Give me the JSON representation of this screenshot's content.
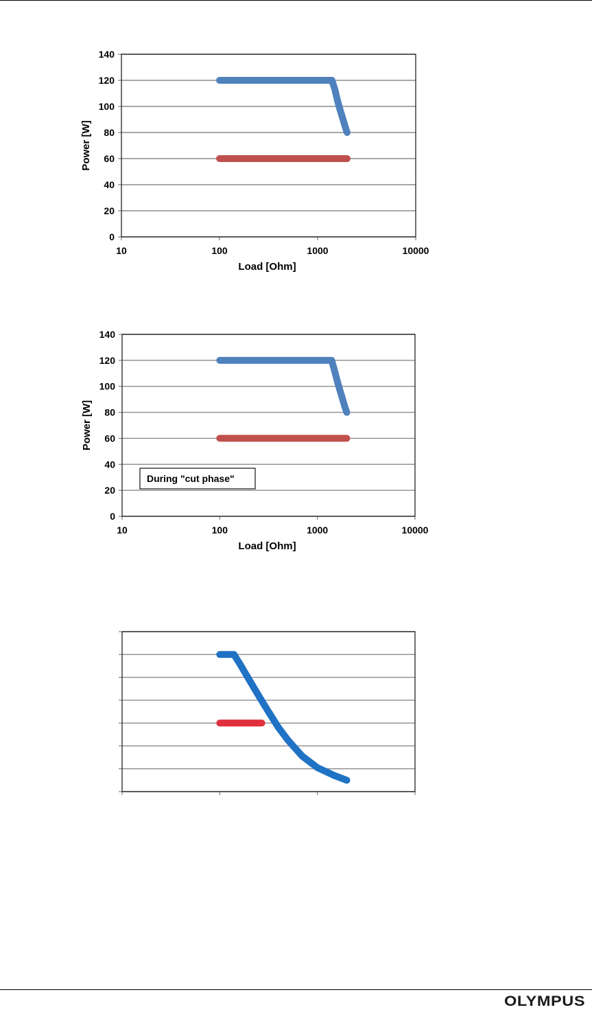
{
  "footer": {
    "brand": "OLYMPUS"
  },
  "chart_data": [
    {
      "type": "line",
      "xscale": "log",
      "xlim": [
        10,
        10000
      ],
      "ylim": [
        0,
        140
      ],
      "yticks": [
        0,
        20,
        40,
        60,
        80,
        100,
        120,
        140
      ],
      "xticks": [
        10,
        100,
        1000,
        10000
      ],
      "show_tick_labels": true,
      "xlabel": "Load [Ohm]",
      "ylabel": "Power [W]",
      "grid": true,
      "annotation": "",
      "series": [
        {
          "color": "#4f81bd",
          "x": [
            100,
            1000,
            1400,
            1500,
            1600,
            1700,
            1800,
            1900,
            2000
          ],
          "y": [
            120,
            120,
            120,
            113,
            104,
            97,
            91,
            85,
            80
          ]
        },
        {
          "color": "#c0504d",
          "x": [
            100,
            2000
          ],
          "y": [
            60,
            60
          ]
        }
      ]
    },
    {
      "type": "line",
      "xscale": "log",
      "xlim": [
        10,
        10000
      ],
      "ylim": [
        0,
        140
      ],
      "yticks": [
        0,
        20,
        40,
        60,
        80,
        100,
        120,
        140
      ],
      "xticks": [
        10,
        100,
        1000,
        10000
      ],
      "show_tick_labels": true,
      "xlabel": "Load [Ohm]",
      "ylabel": "Power [W]",
      "grid": true,
      "annotation": "During \"cut phase\"",
      "series": [
        {
          "color": "#4f81bd",
          "x": [
            100,
            1000,
            1400,
            1500,
            1600,
            1700,
            1800,
            1900,
            2000
          ],
          "y": [
            120,
            120,
            120,
            112,
            104,
            97,
            91,
            85,
            80
          ]
        },
        {
          "color": "#c0504d",
          "x": [
            100,
            2000
          ],
          "y": [
            60,
            60
          ]
        }
      ]
    },
    {
      "type": "line",
      "xscale": "log",
      "xlim": [
        10,
        10000
      ],
      "ylim": [
        0,
        140
      ],
      "yticks": [
        0,
        20,
        40,
        60,
        80,
        100,
        120,
        140
      ],
      "xticks": [
        10,
        100,
        1000,
        10000
      ],
      "show_tick_labels": false,
      "xlabel": "",
      "ylabel": "",
      "grid": true,
      "annotation": "",
      "series": [
        {
          "color": "#1f72c4",
          "x": [
            100,
            140,
            160,
            200,
            250,
            300,
            400,
            500,
            700,
            1000,
            1500,
            2000
          ],
          "y": [
            120,
            120,
            112,
            98,
            84,
            73,
            56,
            45,
            31,
            21,
            14,
            10
          ]
        },
        {
          "color": "#e0303e",
          "x": [
            100,
            270
          ],
          "y": [
            60,
            60
          ]
        }
      ]
    }
  ]
}
